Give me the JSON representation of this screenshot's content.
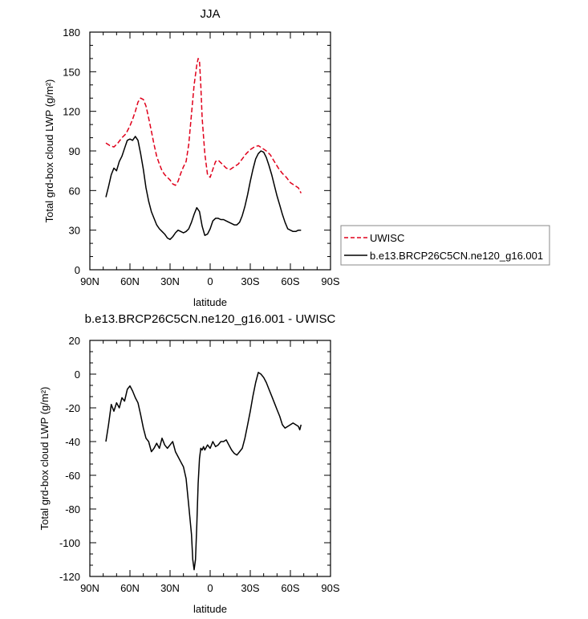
{
  "chart_data": [
    {
      "type": "line",
      "title": "JJA",
      "xlabel": "latitude",
      "ylabel": "Total grd-box cloud LWP (g/m²)",
      "xlim": [
        -90,
        90
      ],
      "ylim": [
        0,
        180
      ],
      "xticks": [
        -90,
        -60,
        -30,
        0,
        30,
        60,
        90
      ],
      "xtick_labels": [
        "90N",
        "60N",
        "30N",
        "0",
        "30S",
        "60S",
        "90S"
      ],
      "yticks": [
        0,
        30,
        60,
        90,
        120,
        150,
        180
      ],
      "ytick_labels": [
        "0",
        "30",
        "60",
        "90",
        "120",
        "150",
        "180"
      ],
      "legend": "outside-right",
      "series": [
        {
          "name": "UWISC",
          "color": "#e0001b",
          "dash": "dashed",
          "x": [
            -78,
            -75,
            -72,
            -69,
            -66,
            -63,
            -60,
            -58,
            -56,
            -54,
            -52,
            -50,
            -48,
            -46,
            -44,
            -42,
            -40,
            -38,
            -36,
            -34,
            -32,
            -30,
            -28,
            -26,
            -24,
            -22,
            -20,
            -18,
            -16,
            -14,
            -12,
            -10,
            -9,
            -8,
            -7,
            -6,
            -4,
            -2,
            0,
            2,
            4,
            6,
            9,
            12,
            15,
            18,
            21,
            24,
            27,
            30,
            33,
            36,
            39,
            42,
            45,
            48,
            51,
            54,
            57,
            60,
            63,
            66,
            68
          ],
          "y": [
            96,
            94,
            93,
            96,
            100,
            103,
            109,
            114,
            120,
            127,
            130,
            129,
            124,
            115,
            105,
            95,
            86,
            80,
            75,
            72,
            70,
            68,
            65,
            64,
            67,
            73,
            78,
            82,
            95,
            118,
            140,
            155,
            160,
            158,
            140,
            115,
            88,
            72,
            70,
            76,
            82,
            83,
            80,
            77,
            76,
            78,
            80,
            84,
            88,
            91,
            93,
            94,
            92,
            90,
            87,
            82,
            77,
            73,
            70,
            66,
            64,
            62,
            58
          ]
        },
        {
          "name": "b.e13.BRCP26C5CN.ne120_g16.001",
          "color": "#000000",
          "dash": "solid",
          "x": [
            -78,
            -76,
            -74,
            -72,
            -70,
            -68,
            -66,
            -64,
            -62,
            -60,
            -58,
            -56,
            -54,
            -52,
            -50,
            -48,
            -46,
            -44,
            -42,
            -40,
            -38,
            -36,
            -34,
            -32,
            -30,
            -28,
            -26,
            -24,
            -22,
            -20,
            -18,
            -16,
            -14,
            -12,
            -10,
            -8,
            -6,
            -4,
            -2,
            0,
            2,
            4,
            6,
            8,
            10,
            12,
            14,
            16,
            18,
            20,
            22,
            24,
            26,
            28,
            30,
            32,
            34,
            36,
            38,
            40,
            42,
            44,
            46,
            48,
            50,
            52,
            54,
            56,
            58,
            60,
            62,
            64,
            66,
            68
          ],
          "y": [
            55,
            63,
            72,
            77,
            75,
            82,
            86,
            92,
            98,
            99,
            98,
            101,
            98,
            88,
            76,
            62,
            52,
            44,
            39,
            34,
            31,
            29,
            27,
            24,
            23,
            25,
            28,
            30,
            29,
            28,
            29,
            31,
            36,
            42,
            47,
            44,
            33,
            26,
            27,
            31,
            37,
            39,
            39,
            38,
            38,
            37,
            36,
            35,
            34,
            34,
            36,
            41,
            48,
            57,
            67,
            76,
            84,
            88,
            90,
            89,
            85,
            79,
            72,
            64,
            56,
            49,
            42,
            36,
            31,
            30,
            29,
            29,
            30,
            30
          ]
        }
      ]
    },
    {
      "type": "line",
      "title": "b.e13.BRCP26C5CN.ne120_g16.001 - UWISC",
      "xlabel": "latitude",
      "ylabel": "Total grd-box cloud LWP (g/m²)",
      "xlim": [
        -90,
        90
      ],
      "ylim": [
        -120,
        20
      ],
      "xticks": [
        -90,
        -60,
        -30,
        0,
        30,
        60,
        90
      ],
      "xtick_labels": [
        "90N",
        "60N",
        "30N",
        "0",
        "30S",
        "60S",
        "90S"
      ],
      "yticks": [
        -120,
        -100,
        -80,
        -60,
        -40,
        -20,
        0,
        20
      ],
      "ytick_labels": [
        "-120",
        "-100",
        "-80",
        "-60",
        "-40",
        "-20",
        "0",
        "20"
      ],
      "series": [
        {
          "color": "#000000",
          "dash": "solid",
          "x": [
            -78,
            -76,
            -74,
            -72,
            -70,
            -68,
            -66,
            -64,
            -62,
            -60,
            -58,
            -56,
            -54,
            -52,
            -50,
            -48,
            -46,
            -44,
            -42,
            -40,
            -38,
            -36,
            -34,
            -32,
            -30,
            -28,
            -26,
            -24,
            -22,
            -20,
            -18,
            -16,
            -14,
            -13,
            -12,
            -11,
            -10,
            -9,
            -8,
            -7,
            -6,
            -5,
            -4,
            -2,
            0,
            2,
            4,
            6,
            8,
            10,
            12,
            14,
            16,
            18,
            20,
            22,
            24,
            26,
            28,
            30,
            32,
            34,
            36,
            38,
            40,
            42,
            44,
            46,
            48,
            50,
            52,
            54,
            56,
            58,
            60,
            62,
            64,
            66,
            67,
            68
          ],
          "y": [
            -40,
            -30,
            -18,
            -22,
            -17,
            -20,
            -14,
            -16,
            -9,
            -7,
            -10,
            -14,
            -17,
            -24,
            -32,
            -38,
            -40,
            -46,
            -44,
            -41,
            -44,
            -38,
            -42,
            -44,
            -42,
            -40,
            -46,
            -49,
            -52,
            -55,
            -62,
            -78,
            -95,
            -110,
            -116,
            -110,
            -90,
            -65,
            -50,
            -44,
            -45,
            -43,
            -45,
            -42,
            -44,
            -40,
            -43,
            -42,
            -40,
            -40,
            -39,
            -42,
            -45,
            -47,
            -48,
            -46,
            -44,
            -38,
            -30,
            -22,
            -13,
            -5,
            1,
            0,
            -2,
            -5,
            -9,
            -13,
            -17,
            -21,
            -25,
            -30,
            -32,
            -31,
            -30,
            -29,
            -30,
            -31,
            -33,
            -30
          ]
        }
      ]
    }
  ]
}
